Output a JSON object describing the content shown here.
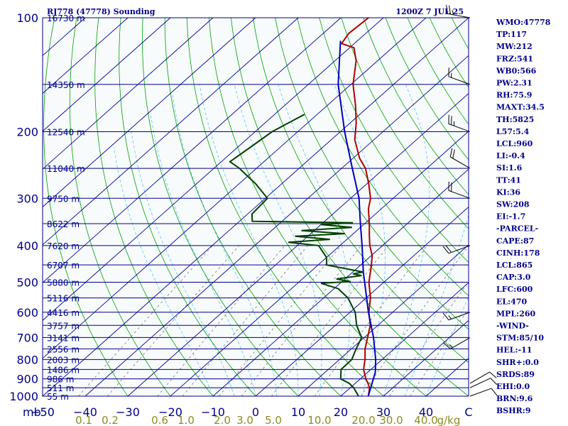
{
  "header": {
    "station": "RJ778 (47778) Sounding",
    "valid_time": "1200Z  7 JUL 25"
  },
  "colors": {
    "background": "#f7fbfb",
    "isobar": "#00008b",
    "isotherm": "#0000a0",
    "dry_adiabat": "#00a000",
    "moist_adiabat": "#60c0ff",
    "mixing_ratio": "#606060",
    "temperature": "#b00000",
    "dewpoint": "#004000",
    "parcel": "#0000c0",
    "wind_barb": "#000000",
    "mr_text": "#8c8c20",
    "axis_text": "#00008b"
  },
  "indices": [
    "WMO:47778",
    "TP:117",
    "MW:212",
    "FRZ:541",
    "WB0:566",
    "PW:2.31",
    "RH:75.9",
    "MAXT:34.5",
    "TH:5825",
    "L57:5.4",
    "LCL:960",
    "LI:-0.4",
    "SI:1.6",
    "TT:41",
    "KI:36",
    "SW:208",
    "EI:-1.7",
    "-PARCEL-",
    "CAPE:87",
    "CINH:178",
    "LCL:865",
    "CAP:3.0",
    "LFC:600",
    "EL:470",
    "MPL:260",
    "-WIND-",
    "STM:85/10",
    "HEL:-11",
    "SHR+:0.0",
    "SRDS:89",
    "EHI:0.0",
    "BRN:9.6",
    "BSHR:9"
  ],
  "chart_data": {
    "type": "line",
    "x_axis": {
      "unit": "C",
      "ticks": [
        -50,
        -40,
        -30,
        -20,
        -10,
        0,
        10,
        20,
        30,
        40
      ],
      "range": [
        -50,
        50
      ]
    },
    "y_axis": {
      "unit": "mb",
      "scale": "log",
      "range": [
        1000,
        100
      ],
      "ticks": [
        {
          "p": 100,
          "label": "100"
        },
        {
          "p": 200,
          "label": "200"
        },
        {
          "p": 300,
          "label": "300"
        },
        {
          "p": 400,
          "label": "400"
        },
        {
          "p": 500,
          "label": "500"
        },
        {
          "p": 600,
          "label": "600"
        },
        {
          "p": 700,
          "label": "700"
        },
        {
          "p": 800,
          "label": "800"
        },
        {
          "p": 900,
          "label": "900"
        },
        {
          "p": 1000,
          "label": "1000"
        }
      ]
    },
    "heights": [
      {
        "p": 100,
        "label": "16730 m"
      },
      {
        "p": 150,
        "label": "14350 m"
      },
      {
        "p": 200,
        "label": "12540 m"
      },
      {
        "p": 250,
        "label": "11040 m"
      },
      {
        "p": 300,
        "label": "9750 m"
      },
      {
        "p": 350,
        "label": "8622 m"
      },
      {
        "p": 400,
        "label": "7620 m"
      },
      {
        "p": 450,
        "label": "6707 m"
      },
      {
        "p": 500,
        "label": "5880 m"
      },
      {
        "p": 550,
        "label": "5116 m"
      },
      {
        "p": 600,
        "label": "4416 m"
      },
      {
        "p": 650,
        "label": "3757 m"
      },
      {
        "p": 700,
        "label": "3141 m"
      },
      {
        "p": 750,
        "label": "2556 m"
      },
      {
        "p": 800,
        "label": "2003 m"
      },
      {
        "p": 850,
        "label": "1486 m"
      },
      {
        "p": 900,
        "label": "986 m"
      },
      {
        "p": 950,
        "label": "511 m"
      },
      {
        "p": 1000,
        "label": "55 m"
      }
    ],
    "mixing_ratio_labels": [
      "0.1",
      "0.2",
      "0.6",
      "1.0",
      "2.0",
      "3.0",
      "5.0",
      "10.0",
      "20.0",
      "30.0",
      "40.0"
    ],
    "mixing_ratio_unit": "g/kg",
    "series": [
      {
        "key": "temperature",
        "points": [
          [
            999,
            26.4
          ],
          [
            990,
            26.1
          ],
          [
            950,
            24.5
          ],
          [
            925,
            23.0
          ],
          [
            900,
            21.3
          ],
          [
            850,
            18.3
          ],
          [
            800,
            16.0
          ],
          [
            750,
            13.2
          ],
          [
            700,
            10.8
          ],
          [
            650,
            8.2
          ],
          [
            600,
            4.4
          ],
          [
            550,
            1.0
          ],
          [
            500,
            -3.5
          ],
          [
            450,
            -7.5
          ],
          [
            425,
            -9.8
          ],
          [
            400,
            -13.0
          ],
          [
            375,
            -15.9
          ],
          [
            350,
            -18.9
          ],
          [
            320,
            -23.0
          ],
          [
            300,
            -25.3
          ],
          [
            275,
            -29.5
          ],
          [
            250,
            -34.4
          ],
          [
            235,
            -38.5
          ],
          [
            210,
            -44.5
          ],
          [
            190,
            -48.5
          ],
          [
            170,
            -53.5
          ],
          [
            150,
            -59.5
          ],
          [
            130,
            -65.0
          ],
          [
            120,
            -69.0
          ],
          [
            117,
            -73.0
          ],
          [
            110,
            -74.0
          ],
          [
            100,
            -73.5
          ]
        ]
      },
      {
        "key": "dewpoint",
        "points": [
          [
            999,
            24.1
          ],
          [
            950,
            20.8
          ],
          [
            925,
            18.6
          ],
          [
            900,
            15.4
          ],
          [
            850,
            13.0
          ],
          [
            800,
            12.9
          ],
          [
            750,
            11.1
          ],
          [
            700,
            9.4
          ],
          [
            650,
            5.0
          ],
          [
            600,
            1.2
          ],
          [
            550,
            -4.3
          ],
          [
            520,
            -9.0
          ],
          [
            503,
            -14.5
          ],
          [
            498,
            -8.0
          ],
          [
            490,
            -12.0
          ],
          [
            480,
            -7.0
          ],
          [
            475,
            -9.5
          ],
          [
            470,
            -7.5
          ],
          [
            450,
            -18.0
          ],
          [
            430,
            -20.0
          ],
          [
            400,
            -25.0
          ],
          [
            392,
            -33.0
          ],
          [
            385,
            -24.0
          ],
          [
            378,
            -33.0
          ],
          [
            372,
            -22.0
          ],
          [
            365,
            -33.0
          ],
          [
            358,
            -22.0
          ],
          [
            352,
            -30.0
          ],
          [
            348,
            -23.0
          ],
          [
            345,
            -47.0
          ],
          [
            330,
            -49.0
          ],
          [
            300,
            -49.5
          ],
          [
            275,
            -56.0
          ],
          [
            250,
            -64.0
          ],
          [
            240,
            -68.0
          ],
          [
            220,
            -67.0
          ],
          [
            200,
            -66.0
          ],
          [
            180,
            -63.0
          ]
        ]
      },
      {
        "key": "parcel",
        "points": [
          [
            999,
            26.4
          ],
          [
            865,
            21.8
          ],
          [
            800,
            18.5
          ],
          [
            700,
            12.2
          ],
          [
            600,
            4.3
          ],
          [
            500,
            -4.5
          ],
          [
            470,
            -7.5
          ],
          [
            400,
            -14.8
          ],
          [
            350,
            -21.0
          ],
          [
            300,
            -28.0
          ],
          [
            250,
            -37.5
          ],
          [
            200,
            -49.0
          ],
          [
            150,
            -63.0
          ],
          [
            115,
            -74.0
          ]
        ]
      }
    ],
    "wind_barbs": [
      {
        "p": 1000,
        "dir": 70,
        "spd": 10
      },
      {
        "p": 950,
        "dir": 65,
        "spd": 10
      },
      {
        "p": 925,
        "dir": 60,
        "spd": 10
      },
      {
        "p": 700,
        "dir": 240,
        "spd": 15
      },
      {
        "p": 600,
        "dir": 250,
        "spd": 15
      },
      {
        "p": 400,
        "dir": 250,
        "spd": 20
      },
      {
        "p": 300,
        "dir": 290,
        "spd": 20
      },
      {
        "p": 250,
        "dir": 300,
        "spd": 20
      },
      {
        "p": 200,
        "dir": 290,
        "spd": 25
      },
      {
        "p": 150,
        "dir": 290,
        "spd": 15
      },
      {
        "p": 100,
        "dir": 280,
        "spd": 25
      }
    ]
  }
}
